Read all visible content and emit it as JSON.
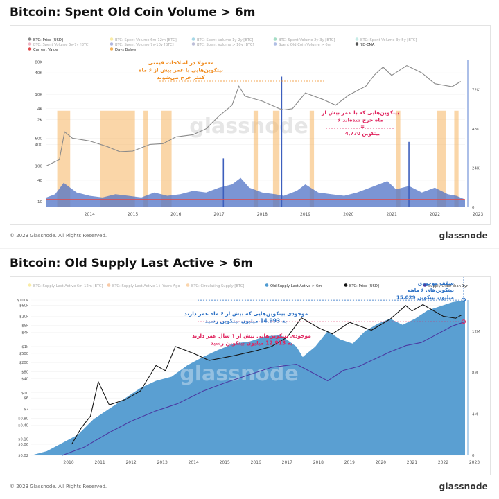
{
  "charts": [
    {
      "title": "Bitcoin: Spent Old Coin Volume > 6m",
      "legend_row1": [
        {
          "label": "BTC: Price [USD]",
          "color": "#888888",
          "active": true
        },
        {
          "label": "BTC: Spent Volume 6m-12m [BTC]",
          "color": "#f2d43a",
          "active": false
        },
        {
          "label": "BTC: Spent Volume 1y-2y [BTC]",
          "color": "#3aa6c8",
          "active": false
        },
        {
          "label": "BTC: Spent Volume 2y-3y [BTC]",
          "color": "#37b37e",
          "active": false
        },
        {
          "label": "BTC: Spent Volume 3y-5y [BTC]",
          "color": "#7fd3c7",
          "active": false
        }
      ],
      "legend_row2": [
        {
          "label": "BTC: Spent Volume 5y-7y [BTC]",
          "color": "#d85a7f",
          "active": false
        },
        {
          "label": "BTC: Spent Volume 7y-10y [BTC]",
          "color": "#4e5db8",
          "active": false
        },
        {
          "label": "BTC: Spent Volume > 10y [BTC]",
          "color": "#6b6fa8",
          "active": false
        },
        {
          "label": "Spent Old Coin Volume > 6m",
          "color": "#4f6fc4",
          "active": false
        },
        {
          "label": "7D-EMA",
          "color": "#555555",
          "active": true
        }
      ],
      "legend_row3": [
        {
          "label": "Current Value",
          "color": "#e04848",
          "active": true
        },
        {
          "label": "Days Below",
          "color": "#f3b25a",
          "active": true
        }
      ],
      "annotations": [
        {
          "lines": [
            "معمولا در اصلاحات قیمتی",
            "بیتکوین‌هایی با عمر بیش از ۶ ماه",
            "کمتر خرج می‌شوند"
          ],
          "color": "#f08a1c"
        },
        {
          "lines": [
            "بیتکوین‌هایی که با عمر بیش از",
            "۶ ماه خرج شده‌اند"
          ],
          "color": "#e0245e"
        },
        {
          "lines": [
            "=",
            "4,770 بیتکوین"
          ],
          "color": "#e0245e"
        }
      ],
      "chart_data": {
        "type": "area",
        "x_ticks": [
          "2014",
          "2015",
          "2016",
          "2017",
          "2018",
          "2019",
          "2020",
          "2021",
          "2022",
          "2023"
        ],
        "y_left_ticks": [
          "80K",
          "40K",
          "10K",
          "4K",
          "2K",
          "600",
          "400",
          "100",
          "40",
          "10"
        ],
        "y_right_ticks": [
          "72K",
          "48K",
          "24K",
          "0"
        ],
        "y_left_log": true,
        "x_range": [
          2013.5,
          2023.2
        ],
        "y_left_range": [
          7,
          90000
        ],
        "y_right_range": [
          0,
          90000
        ],
        "current_value": 4770,
        "price_usd": {
          "x": [
            2013.5,
            2013.8,
            2013.92,
            2014.1,
            2014.5,
            2014.9,
            2015.2,
            2015.5,
            2015.9,
            2016.2,
            2016.5,
            2016.9,
            2017.2,
            2017.5,
            2017.8,
            2017.96,
            2018.1,
            2018.5,
            2018.9,
            2019.0,
            2019.2,
            2019.5,
            2019.9,
            2020.2,
            2020.5,
            2020.9,
            2021.1,
            2021.3,
            2021.5,
            2021.85,
            2022.2,
            2022.5,
            2022.9,
            2023.1
          ],
          "y": [
            100,
            150,
            900,
            600,
            500,
            350,
            250,
            260,
            400,
            420,
            650,
            750,
            1100,
            2500,
            5000,
            17000,
            9000,
            6500,
            4000,
            3700,
            4000,
            11000,
            7300,
            5000,
            9500,
            17000,
            35000,
            58000,
            34000,
            64000,
            40000,
            20000,
            16500,
            23000
          ]
        },
        "spent_volume_btc": {
          "x": [
            2013.5,
            2013.7,
            2013.9,
            2014.2,
            2014.5,
            2014.8,
            2015.1,
            2015.4,
            2015.7,
            2016.0,
            2016.3,
            2016.6,
            2016.9,
            2017.2,
            2017.5,
            2017.8,
            2018.0,
            2018.2,
            2018.5,
            2018.8,
            2019.0,
            2019.3,
            2019.5,
            2019.8,
            2020.1,
            2020.4,
            2020.7,
            2021.0,
            2021.2,
            2021.4,
            2021.6,
            2021.9,
            2022.2,
            2022.5,
            2022.8,
            2023.0,
            2023.2
          ],
          "y": [
            6000,
            8000,
            15000,
            9000,
            7000,
            6000,
            8000,
            7000,
            6000,
            9000,
            7000,
            8000,
            10000,
            9000,
            12000,
            14000,
            18000,
            12000,
            9000,
            8000,
            7000,
            10000,
            14000,
            9000,
            8000,
            7000,
            9000,
            12000,
            14000,
            16000,
            11000,
            13000,
            9000,
            12000,
            8000,
            7000,
            4770
          ]
        },
        "spike_btc": [
          {
            "x": 2018.95,
            "y": 80000
          },
          {
            "x": 2021.9,
            "y": 40000
          },
          {
            "x": 2017.6,
            "y": 30000
          }
        ]
      }
    },
    {
      "title": "Bitcoin: Old Supply Last Active > 6m",
      "legend": [
        {
          "label": "BTC: Supply Last Active 6m-12m [BTC]",
          "color": "#f2d43a",
          "active": false
        },
        {
          "label": "BTC: Supply Last Active 1+ Years Ago",
          "color": "#f08a3c",
          "active": false
        },
        {
          "label": "BTC: Circulating Supply [BTC]",
          "color": "#f3a14a",
          "active": false
        },
        {
          "label": "Old Supply Last Active > 6m",
          "color": "#4f9bd1",
          "active": true
        },
        {
          "label": "BTC: Price [USD]",
          "color": "#111111",
          "active": true
        },
        {
          "label": "Supply Older than 1yr",
          "color": "#4b3aa2",
          "active": true
        }
      ],
      "annotations": [
        {
          "lines": [
            "سقف موجودی",
            "بیتکوین‌های ۶ ماهه",
            "15.029 میلیون بیتکوین"
          ],
          "color": "#2a6fc4"
        },
        {
          "lines": [
            "موجودی بیتکوین‌هایی که بیش از ۶ ماه عمر دارند",
            "به 14.993 میلیون بیتکوین رسید"
          ],
          "color": "#2a6fc4"
        },
        {
          "lines": [
            "موجودی بیتکوین‌هایی بیش از ۱ سال عمر دارند",
            "به 12.913 میلیون بیتکوین رسید"
          ],
          "color": "#e0245e"
        }
      ],
      "chart_data": {
        "type": "area",
        "x_ticks": [
          "2010",
          "2011",
          "2012",
          "2013",
          "2014",
          "2015",
          "2016",
          "2017",
          "2018",
          "2019",
          "2020",
          "2021",
          "2022",
          "2023"
        ],
        "y_left_ticks": [
          "$100k",
          "$60k",
          "$20k",
          "$8k",
          "$4k",
          "$1k",
          "$500",
          "$200",
          "$80",
          "$40",
          "$10",
          "$6",
          "$2",
          "$0.80",
          "$0.40",
          "$0.10",
          "$0.06",
          "$0.02"
        ],
        "y_right_ticks": [
          "12M",
          "8M",
          "4M",
          "0"
        ],
        "y_left_log": true,
        "x_range": [
          2009.3,
          2023.2
        ],
        "y_left_range": [
          0.02,
          100000
        ],
        "y_right_range": [
          0,
          15000000
        ],
        "supply_ath_btc": 15029000,
        "supply_older_6m_btc": 14993000,
        "supply_older_1y_btc": 12913000,
        "old_supply_6m": {
          "x": [
            2009.3,
            2009.8,
            2010.3,
            2010.8,
            2011.3,
            2011.8,
            2012.3,
            2012.8,
            2013.3,
            2013.8,
            2014.3,
            2014.8,
            2015.3,
            2015.8,
            2016.3,
            2016.8,
            2017.3,
            2017.8,
            2018.0,
            2018.4,
            2018.8,
            2019.2,
            2019.6,
            2020.0,
            2020.4,
            2020.8,
            2021.2,
            2021.6,
            2022.0,
            2022.4,
            2022.8,
            2023.2
          ],
          "y": [
            0,
            400000,
            1200000,
            2000000,
            3500000,
            4500000,
            5500000,
            6500000,
            7200000,
            7600000,
            8700000,
            9500000,
            10200000,
            10800000,
            11000000,
            11500000,
            11600000,
            10500000,
            9500000,
            10500000,
            12000000,
            11200000,
            10800000,
            12000000,
            12700000,
            13200000,
            12600000,
            13200000,
            14000000,
            14400000,
            14800000,
            14993000
          ]
        },
        "supply_older_1y": {
          "x": [
            2010.3,
            2011.0,
            2011.8,
            2012.5,
            2013.3,
            2014.0,
            2014.8,
            2015.5,
            2016.3,
            2017.0,
            2017.8,
            2018.3,
            2018.8,
            2019.3,
            2019.8,
            2020.3,
            2020.8,
            2021.3,
            2021.8,
            2022.3,
            2022.8,
            2023.2
          ],
          "y": [
            0,
            800000,
            2200000,
            3300000,
            4300000,
            5000000,
            6200000,
            7000000,
            7800000,
            8500000,
            8800000,
            8000000,
            7200000,
            8200000,
            8600000,
            9300000,
            10000000,
            10600000,
            10900000,
            11700000,
            12500000,
            12913000
          ]
        },
        "price_usd": {
          "x": [
            2010.6,
            2010.9,
            2011.2,
            2011.45,
            2011.8,
            2012.3,
            2012.8,
            2013.3,
            2013.6,
            2013.92,
            2014.5,
            2015.0,
            2015.8,
            2016.5,
            2017.0,
            2017.5,
            2017.96,
            2018.5,
            2018.95,
            2019.5,
            2020.2,
            2020.8,
            2021.3,
            2021.5,
            2021.85,
            2022.5,
            2022.9,
            2023.1
          ],
          "y": [
            0.06,
            0.3,
            1,
            30,
            3,
            5,
            12,
            150,
            90,
            1000,
            500,
            250,
            400,
            650,
            1000,
            2500,
            17000,
            6500,
            3500,
            11000,
            5000,
            15000,
            58000,
            34000,
            64000,
            20000,
            16500,
            23000
          ]
        }
      }
    }
  ],
  "copyright": "© 2023 Glassnode. All Rights Reserved.",
  "brand": "glassnode",
  "watermark": "glassnode"
}
